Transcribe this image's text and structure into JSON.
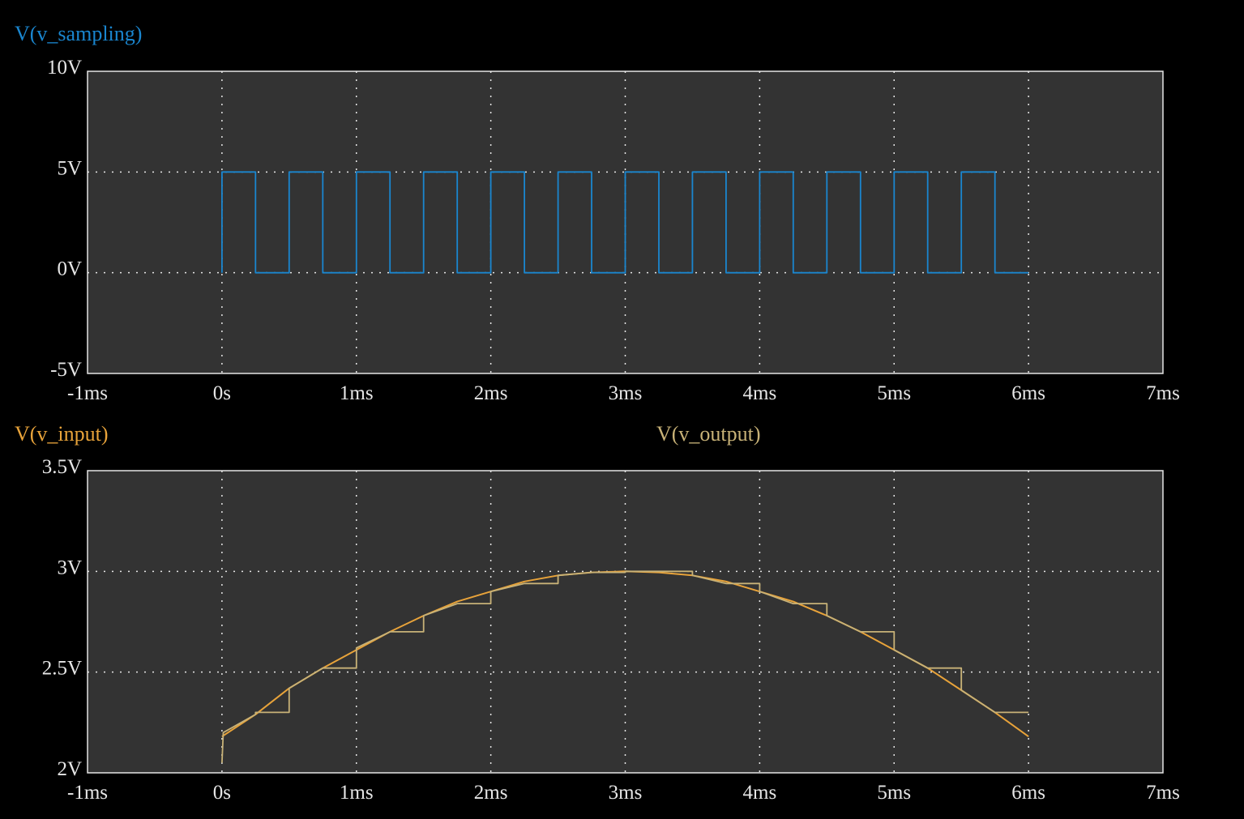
{
  "colors": {
    "background": "#000000",
    "plot_bg": "#333333",
    "grid": "#e6e6e6",
    "sampling": "#1a86cf",
    "input": "#e8a33a",
    "output": "#c8b277"
  },
  "chart_data": [
    {
      "type": "line",
      "title_trace": "V(v_sampling)",
      "x_ticks": [
        "-1ms",
        "0s",
        "1ms",
        "2ms",
        "3ms",
        "4ms",
        "5ms",
        "6ms",
        "7ms"
      ],
      "y_ticks": [
        "10V",
        "5V",
        "0V",
        "-5V"
      ],
      "xlim": [
        -1,
        7
      ],
      "ylim": [
        -5,
        10
      ],
      "x_unit": "ms",
      "grid": true,
      "series": [
        {
          "name": "V(v_sampling)",
          "color": "#1a86cf",
          "x": [
            0,
            0,
            0.25,
            0.25,
            0.5,
            0.5,
            0.75,
            0.75,
            1,
            1,
            1.25,
            1.25,
            1.5,
            1.5,
            1.75,
            1.75,
            2,
            2,
            2.25,
            2.25,
            2.5,
            2.5,
            2.75,
            2.75,
            3,
            3,
            3.25,
            3.25,
            3.5,
            3.5,
            3.75,
            3.75,
            4,
            4,
            4.25,
            4.25,
            4.5,
            4.5,
            4.75,
            4.75,
            5,
            5,
            5.25,
            5.25,
            5.5,
            5.5,
            5.75,
            5.75,
            6
          ],
          "y": [
            0,
            5,
            5,
            0,
            0,
            5,
            5,
            0,
            0,
            5,
            5,
            0,
            0,
            5,
            5,
            0,
            0,
            5,
            5,
            0,
            0,
            5,
            5,
            0,
            0,
            5,
            5,
            0,
            0,
            5,
            5,
            0,
            0,
            5,
            5,
            0,
            0,
            5,
            5,
            0,
            0,
            5,
            5,
            0,
            0,
            5,
            5,
            0,
            0
          ]
        }
      ]
    },
    {
      "type": "line",
      "title_traces": [
        "V(v_input)",
        "V(v_output)"
      ],
      "x_ticks": [
        "-1ms",
        "0s",
        "1ms",
        "2ms",
        "3ms",
        "4ms",
        "5ms",
        "6ms",
        "7ms"
      ],
      "y_ticks": [
        "3.5V",
        "3V",
        "2.5V",
        "2V"
      ],
      "xlim": [
        -1,
        7
      ],
      "ylim": [
        2,
        3.5
      ],
      "x_unit": "ms",
      "grid": true,
      "series": [
        {
          "name": "V(v_input)",
          "color": "#e8a33a",
          "x": [
            0,
            0.25,
            0.5,
            0.75,
            1,
            1.25,
            1.5,
            1.75,
            2,
            2.25,
            2.5,
            2.75,
            3,
            3.25,
            3.5,
            3.75,
            4,
            4.25,
            4.5,
            4.75,
            5,
            5.25,
            5.5,
            5.75,
            6
          ],
          "y": [
            2.18,
            2.29,
            2.42,
            2.52,
            2.61,
            2.7,
            2.78,
            2.85,
            2.9,
            2.95,
            2.98,
            2.995,
            3.0,
            2.995,
            2.98,
            2.95,
            2.9,
            2.85,
            2.78,
            2.7,
            2.61,
            2.52,
            2.41,
            2.3,
            2.18
          ]
        },
        {
          "name": "V(v_output)",
          "color": "#c8b277",
          "x": [
            0,
            0.01,
            0.25,
            0.25,
            0.5,
            0.5,
            0.75,
            0.75,
            1,
            1,
            1.25,
            1.25,
            1.5,
            1.5,
            1.75,
            1.75,
            2,
            2,
            2.25,
            2.25,
            2.5,
            2.5,
            2.75,
            2.75,
            3,
            3,
            3.25,
            3.25,
            3.5,
            3.5,
            3.75,
            3.75,
            4,
            4,
            4.25,
            4.25,
            4.5,
            4.5,
            4.75,
            4.75,
            5,
            5,
            5.25,
            5.25,
            5.5,
            5.5,
            5.75,
            5.75,
            6
          ],
          "y": [
            2.05,
            2.2,
            2.29,
            2.3,
            2.3,
            2.42,
            2.52,
            2.52,
            2.52,
            2.62,
            2.7,
            2.7,
            2.7,
            2.78,
            2.84,
            2.84,
            2.84,
            2.9,
            2.94,
            2.94,
            2.94,
            2.98,
            2.995,
            2.995,
            2.995,
            3.0,
            3.0,
            3.0,
            3.0,
            2.98,
            2.94,
            2.94,
            2.94,
            2.9,
            2.84,
            2.84,
            2.84,
            2.78,
            2.7,
            2.7,
            2.7,
            2.61,
            2.52,
            2.52,
            2.52,
            2.41,
            2.3,
            2.3,
            2.3
          ]
        }
      ]
    }
  ]
}
